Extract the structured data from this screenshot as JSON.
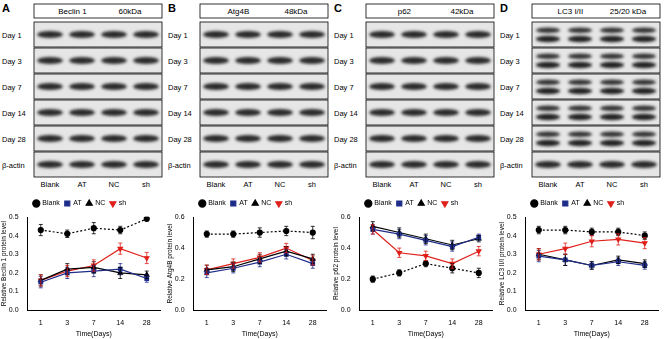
{
  "blots": [
    {
      "letter": "A",
      "protein": "Beclin 1",
      "size": "60kDa",
      "rows": [
        "Day 1",
        "Day 3",
        "Day 7",
        "Day 14",
        "Day 28",
        "β-actin"
      ],
      "lanes": [
        "Blank",
        "AT",
        "NC",
        "sh"
      ]
    },
    {
      "letter": "B",
      "protein": "Atg4B",
      "size": "48kDa",
      "rows": [
        "Day 1",
        "Day 3",
        "Day 7",
        "Day 14",
        "Day 28",
        "β-actin"
      ],
      "lanes": [
        "Blank",
        "AT",
        "NC",
        "sh"
      ]
    },
    {
      "letter": "C",
      "protein": "p62",
      "size": "42kDa",
      "rows": [
        "Day 1",
        "Day 3",
        "Day 7",
        "Day 14",
        "Day 28",
        "β-actin"
      ],
      "lanes": [
        "Blank",
        "AT",
        "NC",
        "sh"
      ]
    },
    {
      "letter": "D",
      "protein": "LC3 I/II",
      "size": "25/20 kDa",
      "rows": [
        "Day 1",
        "Day 3",
        "Day 7",
        "Day 14",
        "Day 28",
        "β-actin"
      ],
      "lanes": [
        "Blank",
        "AT",
        "NC",
        "sh"
      ]
    }
  ],
  "chart_data": [
    {
      "type": "line",
      "x_label": "Time(Days)",
      "y_label": "Relative Beclin 1 protein level",
      "categories": [
        "1",
        "3",
        "7",
        "14",
        "28"
      ],
      "ylim": [
        0,
        0.5
      ],
      "yticks": [
        {
          "value": 0,
          "label": "0.0"
        },
        0.1,
        0.2,
        0.3,
        0.4,
        0.5
      ],
      "grid": false,
      "legend": "top",
      "series": [
        {
          "name": "Blank",
          "color": "#000000",
          "marker": "circle",
          "line_style": "dotted",
          "values": [
            0.43,
            0.41,
            0.44,
            0.43,
            0.49
          ],
          "errors": [
            0.03,
            0.02,
            0.03,
            0.02,
            0.01
          ]
        },
        {
          "name": "AT",
          "color": "#1f2d8a",
          "marker": "square",
          "line_style": "solid",
          "values": [
            0.15,
            0.2,
            0.21,
            0.22,
            0.17
          ],
          "errors": [
            0.03,
            0.03,
            0.03,
            0.03,
            0.02
          ]
        },
        {
          "name": "NC",
          "color": "#000000",
          "marker": "triangle",
          "line_style": "solid",
          "values": [
            0.16,
            0.22,
            0.23,
            0.2,
            0.19
          ],
          "errors": [
            0.03,
            0.03,
            0.03,
            0.03,
            0.02
          ]
        },
        {
          "name": "sh",
          "color": "#e0201b",
          "marker": "triangle-down",
          "line_style": "solid",
          "values": [
            0.16,
            0.21,
            0.24,
            0.33,
            0.28
          ],
          "errors": [
            0.03,
            0.03,
            0.03,
            0.03,
            0.03
          ]
        }
      ]
    },
    {
      "type": "line",
      "x_label": "Time(Days)",
      "y_label": "Relative Atg4B protein level",
      "categories": [
        "1",
        "3",
        "7",
        "14",
        "28"
      ],
      "ylim": [
        0,
        0.6
      ],
      "yticks": [
        {
          "value": 0,
          "label": "0.0"
        },
        0.2,
        0.4,
        0.6
      ],
      "grid": false,
      "legend": "top",
      "series": [
        {
          "name": "Blank",
          "color": "#000000",
          "marker": "circle",
          "line_style": "dotted",
          "values": [
            0.49,
            0.49,
            0.5,
            0.51,
            0.5
          ],
          "errors": [
            0.02,
            0.02,
            0.03,
            0.03,
            0.04
          ]
        },
        {
          "name": "AT",
          "color": "#1f2d8a",
          "marker": "square",
          "line_style": "solid",
          "values": [
            0.24,
            0.27,
            0.31,
            0.36,
            0.3
          ],
          "errors": [
            0.03,
            0.03,
            0.03,
            0.03,
            0.03
          ]
        },
        {
          "name": "NC",
          "color": "#000000",
          "marker": "triangle",
          "line_style": "solid",
          "values": [
            0.26,
            0.28,
            0.33,
            0.38,
            0.33
          ],
          "errors": [
            0.03,
            0.03,
            0.03,
            0.03,
            0.03
          ]
        },
        {
          "name": "sh",
          "color": "#e0201b",
          "marker": "triangle-down",
          "line_style": "solid",
          "values": [
            0.26,
            0.3,
            0.34,
            0.4,
            0.32
          ],
          "errors": [
            0.03,
            0.03,
            0.03,
            0.03,
            0.03
          ]
        }
      ]
    },
    {
      "type": "line",
      "x_label": "Time(Days)",
      "y_label": "Relative p62 protein level",
      "categories": [
        "1",
        "3",
        "7",
        "14",
        "28"
      ],
      "ylim": [
        0,
        0.6
      ],
      "yticks": [
        {
          "value": 0,
          "label": "0.0"
        },
        0.2,
        0.4,
        0.6
      ],
      "grid": false,
      "legend": "top",
      "series": [
        {
          "name": "Blank",
          "color": "#000000",
          "marker": "circle",
          "line_style": "dotted",
          "values": [
            0.2,
            0.24,
            0.3,
            0.27,
            0.24
          ],
          "errors": [
            0.02,
            0.02,
            0.02,
            0.03,
            0.03
          ]
        },
        {
          "name": "AT",
          "color": "#1f2d8a",
          "marker": "square",
          "line_style": "solid",
          "values": [
            0.52,
            0.49,
            0.45,
            0.41,
            0.47
          ],
          "errors": [
            0.03,
            0.03,
            0.03,
            0.03,
            0.02
          ]
        },
        {
          "name": "NC",
          "color": "#000000",
          "marker": "triangle",
          "line_style": "solid",
          "values": [
            0.54,
            0.5,
            0.46,
            0.42,
            0.46
          ],
          "errors": [
            0.03,
            0.03,
            0.03,
            0.03,
            0.02
          ]
        },
        {
          "name": "sh",
          "color": "#e0201b",
          "marker": "triangle-down",
          "line_style": "solid",
          "values": [
            0.52,
            0.37,
            0.35,
            0.3,
            0.38
          ],
          "errors": [
            0.03,
            0.03,
            0.03,
            0.03,
            0.03
          ]
        }
      ]
    },
    {
      "type": "line",
      "x_label": "Time(Days)",
      "y_label": "Relative LC3 II/I protein level",
      "categories": [
        "1",
        "3",
        "7",
        "14",
        "28"
      ],
      "ylim": [
        0,
        0.5
      ],
      "yticks": [
        {
          "value": 0,
          "label": "0.0"
        },
        0.1,
        0.2,
        0.3,
        0.4,
        0.5
      ],
      "grid": false,
      "legend": "top",
      "series": [
        {
          "name": "Blank",
          "color": "#000000",
          "marker": "circle",
          "line_style": "dotted",
          "values": [
            0.43,
            0.43,
            0.42,
            0.42,
            0.4
          ],
          "errors": [
            0.02,
            0.02,
            0.02,
            0.02,
            0.02
          ]
        },
        {
          "name": "AT",
          "color": "#1f2d8a",
          "marker": "square",
          "line_style": "solid",
          "values": [
            0.29,
            0.27,
            0.24,
            0.26,
            0.24
          ],
          "errors": [
            0.03,
            0.03,
            0.02,
            0.02,
            0.02
          ]
        },
        {
          "name": "NC",
          "color": "#000000",
          "marker": "triangle",
          "line_style": "solid",
          "values": [
            0.3,
            0.27,
            0.24,
            0.27,
            0.25
          ],
          "errors": [
            0.03,
            0.03,
            0.02,
            0.02,
            0.02
          ]
        },
        {
          "name": "sh",
          "color": "#e0201b",
          "marker": "triangle-down",
          "line_style": "solid",
          "values": [
            0.3,
            0.33,
            0.37,
            0.38,
            0.36
          ],
          "errors": [
            0.03,
            0.03,
            0.03,
            0.03,
            0.03
          ]
        }
      ]
    }
  ]
}
